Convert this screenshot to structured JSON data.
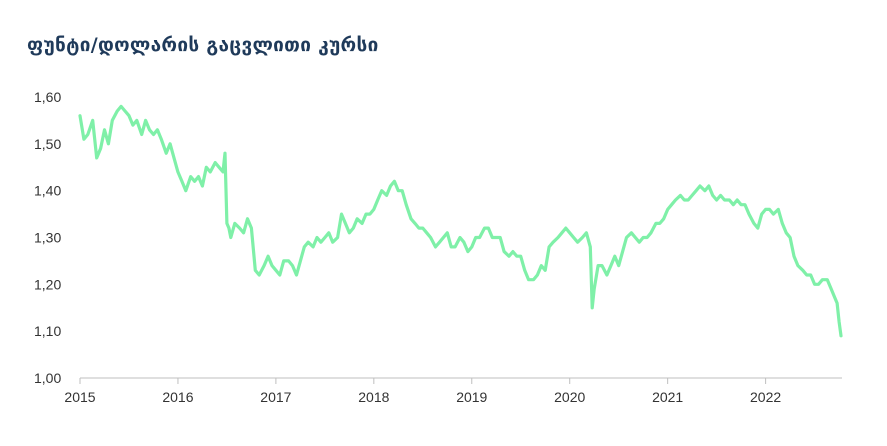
{
  "chart_data": {
    "type": "line",
    "title": "ფუნტი/დოლარის გაცვლითი კურსი",
    "xlabel": "",
    "ylabel": "",
    "x_ticks": [
      "2015",
      "2016",
      "2017",
      "2018",
      "2019",
      "2020",
      "2021",
      "2022"
    ],
    "xlim": [
      2015.0,
      2022.78
    ],
    "ylim": [
      1.0,
      1.6
    ],
    "y_ticks": [
      1.0,
      1.1,
      1.2,
      1.3,
      1.4,
      1.5,
      1.6
    ],
    "y_tick_labels": [
      "1,00",
      "1,10",
      "1,20",
      "1,30",
      "1,40",
      "1,50",
      "1,60"
    ],
    "grid": false,
    "legend": "none",
    "line_color": "#7ff0a8",
    "axis_color": "#bfbfbf",
    "series": [
      {
        "x": [
          2015.0,
          2015.04,
          2015.08,
          2015.13,
          2015.17,
          2015.21,
          2015.25,
          2015.29,
          2015.33,
          2015.38,
          2015.42,
          2015.46,
          2015.5,
          2015.54,
          2015.58,
          2015.63,
          2015.67,
          2015.71,
          2015.75,
          2015.79,
          2015.83,
          2015.88,
          2015.92,
          2015.96,
          2016.0,
          2016.04,
          2016.08,
          2016.13,
          2016.17,
          2016.21,
          2016.25,
          2016.29,
          2016.33,
          2016.38,
          2016.42,
          2016.46,
          2016.48,
          2016.5,
          2016.52,
          2016.54,
          2016.58,
          2016.63,
          2016.67,
          2016.71,
          2016.75,
          2016.79,
          2016.83,
          2016.88,
          2016.92,
          2016.96,
          2017.0,
          2017.04,
          2017.08,
          2017.13,
          2017.17,
          2017.21,
          2017.25,
          2017.29,
          2017.33,
          2017.38,
          2017.42,
          2017.46,
          2017.5,
          2017.54,
          2017.58,
          2017.63,
          2017.67,
          2017.71,
          2017.75,
          2017.79,
          2017.83,
          2017.88,
          2017.92,
          2017.96,
          2018.0,
          2018.04,
          2018.08,
          2018.13,
          2018.17,
          2018.21,
          2018.25,
          2018.29,
          2018.33,
          2018.38,
          2018.42,
          2018.46,
          2018.5,
          2018.54,
          2018.58,
          2018.63,
          2018.67,
          2018.71,
          2018.75,
          2018.79,
          2018.83,
          2018.88,
          2018.92,
          2018.96,
          2019.0,
          2019.04,
          2019.08,
          2019.13,
          2019.17,
          2019.21,
          2019.25,
          2019.29,
          2019.33,
          2019.38,
          2019.42,
          2019.46,
          2019.5,
          2019.54,
          2019.58,
          2019.63,
          2019.67,
          2019.71,
          2019.75,
          2019.79,
          2019.83,
          2019.88,
          2019.92,
          2019.96,
          2020.0,
          2020.04,
          2020.08,
          2020.13,
          2020.17,
          2020.21,
          2020.23,
          2020.25,
          2020.29,
          2020.33,
          2020.38,
          2020.42,
          2020.46,
          2020.5,
          2020.54,
          2020.58,
          2020.63,
          2020.67,
          2020.71,
          2020.75,
          2020.79,
          2020.83,
          2020.88,
          2020.92,
          2020.96,
          2021.0,
          2021.04,
          2021.08,
          2021.13,
          2021.17,
          2021.21,
          2021.25,
          2021.29,
          2021.33,
          2021.38,
          2021.42,
          2021.46,
          2021.5,
          2021.54,
          2021.58,
          2021.63,
          2021.67,
          2021.71,
          2021.75,
          2021.79,
          2021.83,
          2021.88,
          2021.92,
          2021.96,
          2022.0,
          2022.04,
          2022.08,
          2022.13,
          2022.17,
          2022.21,
          2022.25,
          2022.29,
          2022.33,
          2022.38,
          2022.42,
          2022.46,
          2022.5,
          2022.54,
          2022.58,
          2022.63,
          2022.67,
          2022.71,
          2022.73,
          2022.75,
          2022.77
        ],
        "y": [
          1.56,
          1.51,
          1.52,
          1.55,
          1.47,
          1.49,
          1.53,
          1.5,
          1.55,
          1.57,
          1.58,
          1.57,
          1.56,
          1.54,
          1.55,
          1.52,
          1.55,
          1.53,
          1.52,
          1.53,
          1.51,
          1.48,
          1.5,
          1.47,
          1.44,
          1.42,
          1.4,
          1.43,
          1.42,
          1.43,
          1.41,
          1.45,
          1.44,
          1.46,
          1.45,
          1.44,
          1.48,
          1.33,
          1.32,
          1.3,
          1.33,
          1.32,
          1.31,
          1.34,
          1.32,
          1.23,
          1.22,
          1.24,
          1.26,
          1.24,
          1.23,
          1.22,
          1.25,
          1.25,
          1.24,
          1.22,
          1.25,
          1.28,
          1.29,
          1.28,
          1.3,
          1.29,
          1.3,
          1.31,
          1.29,
          1.3,
          1.35,
          1.33,
          1.31,
          1.32,
          1.34,
          1.33,
          1.35,
          1.35,
          1.36,
          1.38,
          1.4,
          1.39,
          1.41,
          1.42,
          1.4,
          1.4,
          1.37,
          1.34,
          1.33,
          1.32,
          1.32,
          1.31,
          1.3,
          1.28,
          1.29,
          1.3,
          1.31,
          1.28,
          1.28,
          1.3,
          1.29,
          1.27,
          1.28,
          1.3,
          1.3,
          1.32,
          1.32,
          1.3,
          1.3,
          1.3,
          1.27,
          1.26,
          1.27,
          1.26,
          1.26,
          1.23,
          1.21,
          1.21,
          1.22,
          1.24,
          1.23,
          1.28,
          1.29,
          1.3,
          1.31,
          1.32,
          1.31,
          1.3,
          1.29,
          1.3,
          1.31,
          1.28,
          1.15,
          1.19,
          1.24,
          1.24,
          1.22,
          1.24,
          1.26,
          1.24,
          1.27,
          1.3,
          1.31,
          1.3,
          1.29,
          1.3,
          1.3,
          1.31,
          1.33,
          1.33,
          1.34,
          1.36,
          1.37,
          1.38,
          1.39,
          1.38,
          1.38,
          1.39,
          1.4,
          1.41,
          1.4,
          1.41,
          1.39,
          1.38,
          1.39,
          1.38,
          1.38,
          1.37,
          1.38,
          1.37,
          1.37,
          1.35,
          1.33,
          1.32,
          1.35,
          1.36,
          1.36,
          1.35,
          1.36,
          1.33,
          1.31,
          1.3,
          1.26,
          1.24,
          1.23,
          1.22,
          1.22,
          1.2,
          1.2,
          1.21,
          1.21,
          1.19,
          1.17,
          1.16,
          1.12,
          1.09
        ]
      }
    ]
  }
}
